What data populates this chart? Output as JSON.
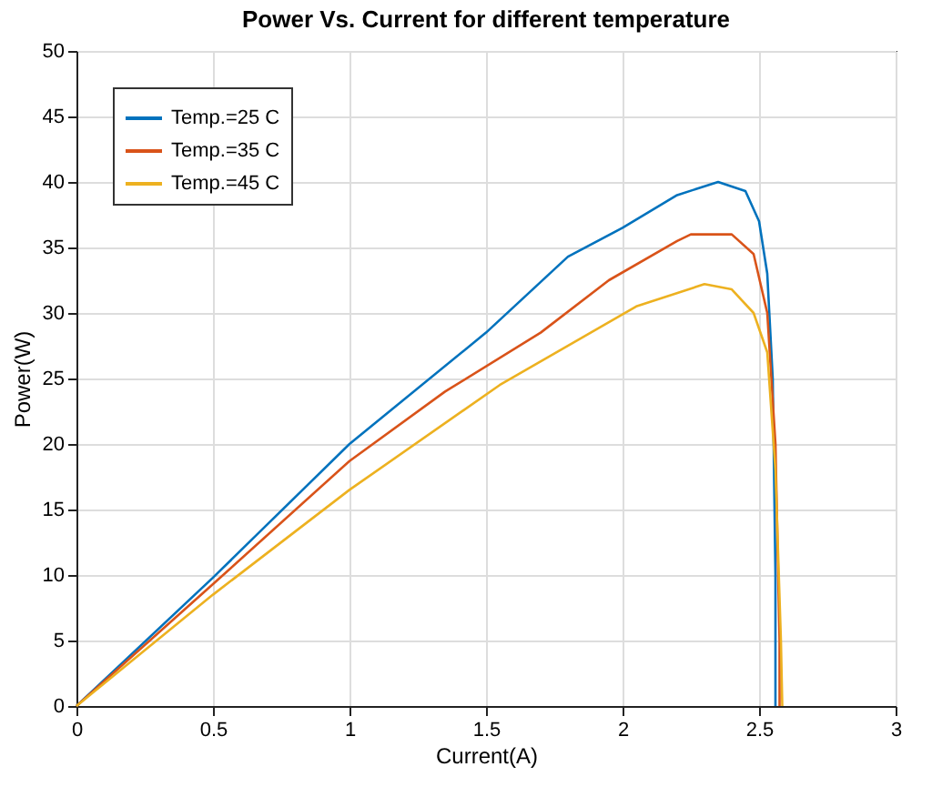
{
  "chart_data": {
    "type": "line",
    "title": "Power Vs. Current for different temperature",
    "xlabel": "Current(A)",
    "ylabel": "Power(W)",
    "xlim": [
      0,
      3
    ],
    "xticks": [
      0,
      0.5,
      1,
      1.5,
      2,
      2.5,
      3
    ],
    "ylim": [
      0,
      50
    ],
    "yticks": [
      0,
      5,
      10,
      15,
      20,
      25,
      30,
      35,
      40,
      45,
      50
    ],
    "grid": true,
    "legend": "top left",
    "line_style": "solid",
    "marker": "none",
    "series": [
      {
        "name": "Temp.=25 C",
        "color": "#0072bd",
        "x": [
          0,
          0.5,
          1,
          1.5,
          1.8,
          2.0,
          2.2,
          2.35,
          2.45,
          2.5,
          2.53,
          2.55,
          2.56,
          2.56
        ],
        "values": [
          0,
          9.8,
          20,
          28.5,
          34.3,
          36.5,
          39,
          40,
          39.3,
          37,
          33,
          25,
          10,
          0
        ]
      },
      {
        "name": "Temp.=35 C",
        "color": "#d95319",
        "x": [
          0,
          0.5,
          1,
          1.35,
          1.7,
          1.95,
          2.2,
          2.25,
          2.4,
          2.48,
          2.53,
          2.56,
          2.575,
          2.575
        ],
        "values": [
          0,
          9.3,
          18.7,
          24,
          28.5,
          32.5,
          35.5,
          36,
          36,
          34.5,
          30,
          20,
          5,
          0
        ]
      },
      {
        "name": "Temp.=45 C",
        "color": "#edb120",
        "x": [
          0,
          0.5,
          1,
          1.55,
          2.05,
          2.3,
          2.4,
          2.48,
          2.53,
          2.56,
          2.58,
          2.585
        ],
        "values": [
          0,
          8.5,
          16.5,
          24.5,
          30.5,
          32.2,
          31.8,
          30,
          27,
          18,
          5,
          0
        ]
      }
    ]
  }
}
